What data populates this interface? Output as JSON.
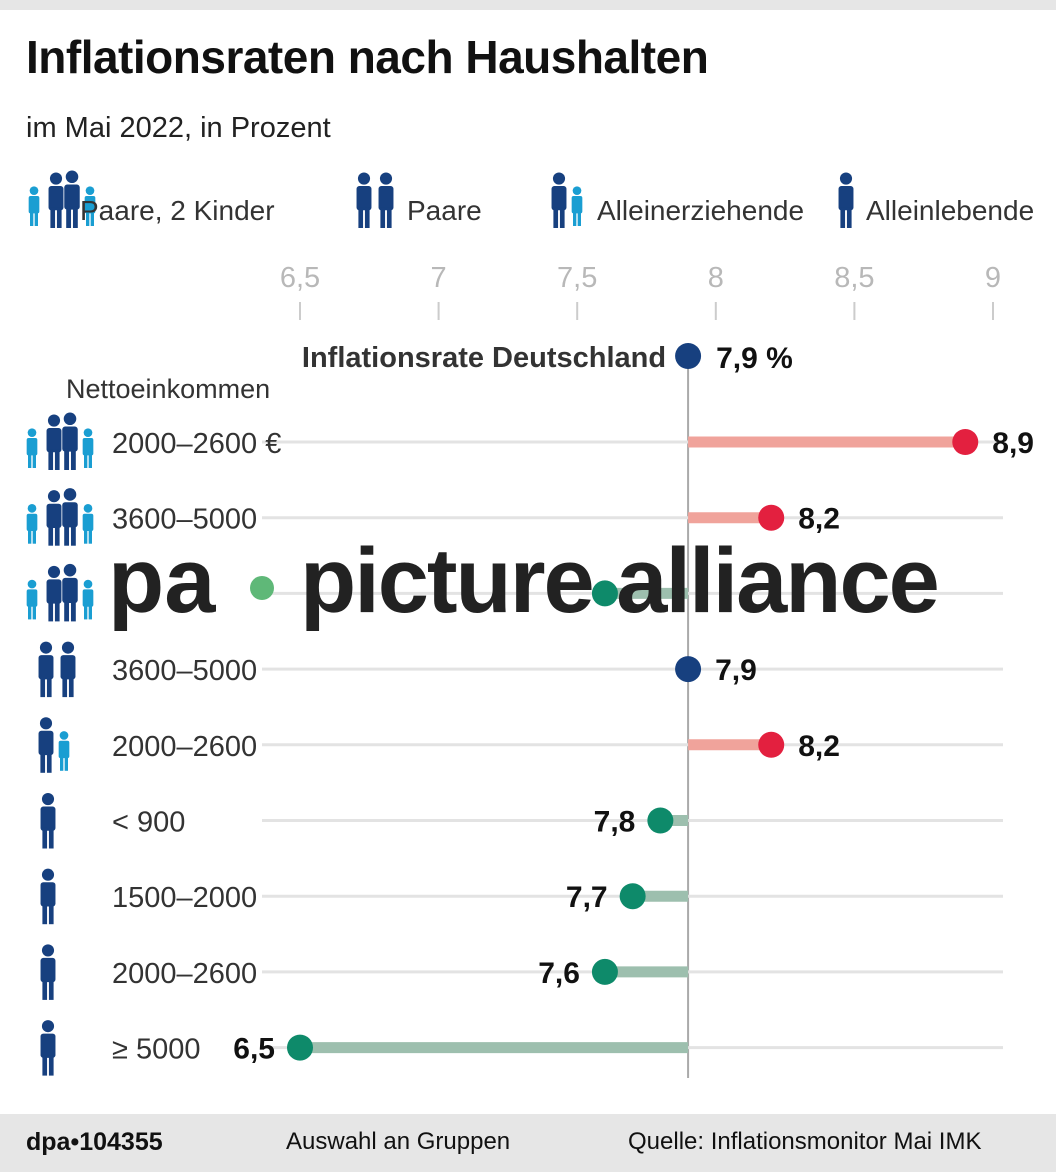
{
  "title": "Inflationsraten nach Haushalten",
  "subtitle": "im Mai 2022, in Prozent",
  "legend": [
    {
      "label": "Paare, 2 Kinder",
      "icon": "couple-two-children-icon"
    },
    {
      "label": "Paare",
      "icon": "couple-icon"
    },
    {
      "label": "Alleinerziehende",
      "icon": "single-parent-icon"
    },
    {
      "label": "Alleinlebende",
      "icon": "single-person-icon"
    }
  ],
  "colors": {
    "adult": "#17407f",
    "child": "#1a9ed2",
    "above": "#e3203f",
    "above_bar": "#f0a39b",
    "below": "#0e8a6a",
    "below_bar": "#9dbfae",
    "reference": "#17407f",
    "grid": "#e3e3e3",
    "axis_text": "#b8b8b8"
  },
  "footer": {
    "id": "dpa•104355",
    "note": "Auswahl an Gruppen",
    "source": "Quelle: Inflationsmonitor Mai IMK"
  },
  "watermark": "pa picture alliance",
  "chart_data": {
    "type": "dot",
    "xlim": [
      6.5,
      9
    ],
    "ticks": [
      "6,5",
      "7",
      "7,5",
      "8",
      "8,5",
      "9"
    ],
    "tick_values": [
      6.5,
      7,
      7.5,
      8,
      8.5,
      9
    ],
    "reference": {
      "label": "Inflationsrate Deutschland",
      "value": 7.9,
      "value_label": "7,9 %"
    },
    "row_header": "Nettoeinkommen",
    "rows": [
      {
        "group": "couple-two-children",
        "label": "2000–2600 €",
        "value": 8.9,
        "value_label": "8,9"
      },
      {
        "group": "couple-two-children",
        "label": "3600–5000",
        "value": 8.2,
        "value_label": "8,2"
      },
      {
        "group": "couple-two-children",
        "label": "",
        "value": 7.6,
        "value_label": ""
      },
      {
        "group": "couple",
        "label": "3600–5000",
        "value": 7.9,
        "value_label": "7,9"
      },
      {
        "group": "single-parent",
        "label": "2000–2600",
        "value": 8.2,
        "value_label": "8,2"
      },
      {
        "group": "single",
        "label": "< 900",
        "value": 7.8,
        "value_label": "7,8"
      },
      {
        "group": "single",
        "label": "1500–2000",
        "value": 7.7,
        "value_label": "7,7"
      },
      {
        "group": "single",
        "label": "2000–2600",
        "value": 7.6,
        "value_label": "7,6"
      },
      {
        "group": "single",
        "label": "≥ 5000",
        "value": 6.5,
        "value_label": "6,5"
      }
    ]
  }
}
